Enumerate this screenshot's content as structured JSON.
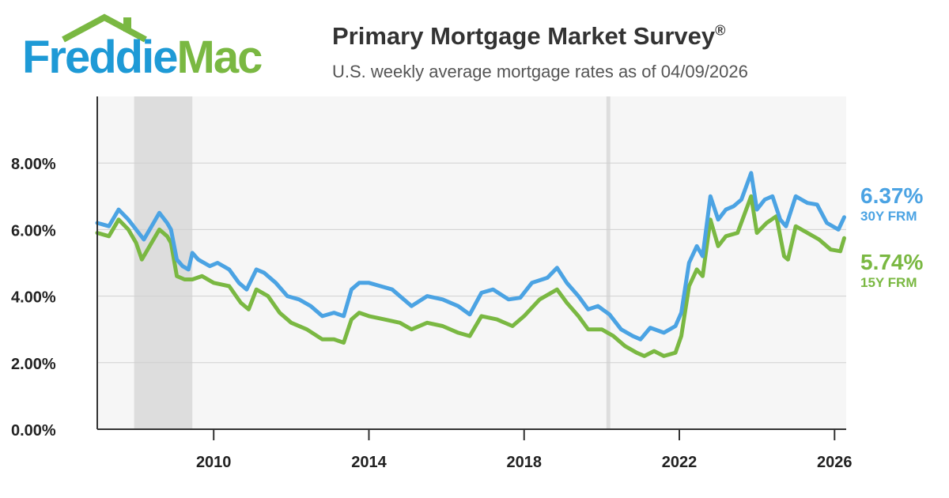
{
  "header": {
    "logo_word1": "Freddie",
    "logo_word2": "Mac",
    "title": "Primary Mortgage Market Survey",
    "title_mark": "®",
    "subtitle": "U.S. weekly average mortgage rates as of 04/09/2026"
  },
  "colors": {
    "brand_blue": "#1e9ad6",
    "brand_green": "#7ab842",
    "series_30y": "#4ba3e3",
    "series_15y": "#7ab842",
    "recession_shade": "#dddddd",
    "plot_background": "#f6f6f6"
  },
  "chart_data": {
    "type": "line",
    "xlim": [
      2007.0,
      2026.3
    ],
    "ylim": [
      0,
      10
    ],
    "y_ticks": [
      {
        "value": 0,
        "label": "0.00%"
      },
      {
        "value": 2,
        "label": "2.00%"
      },
      {
        "value": 4,
        "label": "4.00%"
      },
      {
        "value": 6,
        "label": "6.00%"
      },
      {
        "value": 8,
        "label": "8.00%"
      }
    ],
    "x_ticks": [
      {
        "value": 2010,
        "label": "2010"
      },
      {
        "value": 2014,
        "label": "2014"
      },
      {
        "value": 2018,
        "label": "2018"
      },
      {
        "value": 2022,
        "label": "2022"
      },
      {
        "value": 2026,
        "label": "2026"
      }
    ],
    "grid": "horizontal",
    "shaded_periods": [
      {
        "start": 2007.95,
        "end": 2009.45
      },
      {
        "start": 2020.12,
        "end": 2020.22
      }
    ],
    "series": [
      {
        "name": "30Y FRM",
        "end_value_label": "6.37%",
        "points": [
          [
            2007.0,
            6.2
          ],
          [
            2007.3,
            6.1
          ],
          [
            2007.55,
            6.6
          ],
          [
            2007.8,
            6.3
          ],
          [
            2008.0,
            6.0
          ],
          [
            2008.2,
            5.7
          ],
          [
            2008.4,
            6.1
          ],
          [
            2008.6,
            6.5
          ],
          [
            2008.8,
            6.2
          ],
          [
            2008.9,
            6.0
          ],
          [
            2009.05,
            5.1
          ],
          [
            2009.2,
            4.9
          ],
          [
            2009.35,
            4.8
          ],
          [
            2009.45,
            5.3
          ],
          [
            2009.6,
            5.1
          ],
          [
            2009.9,
            4.9
          ],
          [
            2010.1,
            5.0
          ],
          [
            2010.4,
            4.8
          ],
          [
            2010.65,
            4.4
          ],
          [
            2010.85,
            4.2
          ],
          [
            2011.1,
            4.8
          ],
          [
            2011.3,
            4.7
          ],
          [
            2011.6,
            4.4
          ],
          [
            2011.9,
            4.0
          ],
          [
            2012.2,
            3.9
          ],
          [
            2012.5,
            3.7
          ],
          [
            2012.8,
            3.4
          ],
          [
            2013.1,
            3.5
          ],
          [
            2013.35,
            3.4
          ],
          [
            2013.55,
            4.2
          ],
          [
            2013.75,
            4.4
          ],
          [
            2014.0,
            4.4
          ],
          [
            2014.3,
            4.3
          ],
          [
            2014.6,
            4.2
          ],
          [
            2014.9,
            3.9
          ],
          [
            2015.1,
            3.7
          ],
          [
            2015.5,
            4.0
          ],
          [
            2015.9,
            3.9
          ],
          [
            2016.3,
            3.7
          ],
          [
            2016.6,
            3.45
          ],
          [
            2016.9,
            4.1
          ],
          [
            2017.2,
            4.2
          ],
          [
            2017.6,
            3.9
          ],
          [
            2017.9,
            3.95
          ],
          [
            2018.2,
            4.4
          ],
          [
            2018.6,
            4.55
          ],
          [
            2018.85,
            4.85
          ],
          [
            2019.1,
            4.4
          ],
          [
            2019.4,
            4.0
          ],
          [
            2019.65,
            3.6
          ],
          [
            2019.9,
            3.7
          ],
          [
            2020.2,
            3.45
          ],
          [
            2020.5,
            3.0
          ],
          [
            2020.8,
            2.8
          ],
          [
            2021.0,
            2.7
          ],
          [
            2021.25,
            3.05
          ],
          [
            2021.6,
            2.9
          ],
          [
            2021.9,
            3.1
          ],
          [
            2022.05,
            3.5
          ],
          [
            2022.25,
            5.0
          ],
          [
            2022.45,
            5.5
          ],
          [
            2022.6,
            5.2
          ],
          [
            2022.8,
            7.0
          ],
          [
            2023.0,
            6.3
          ],
          [
            2023.2,
            6.6
          ],
          [
            2023.4,
            6.7
          ],
          [
            2023.6,
            6.9
          ],
          [
            2023.85,
            7.7
          ],
          [
            2024.0,
            6.6
          ],
          [
            2024.2,
            6.9
          ],
          [
            2024.4,
            7.0
          ],
          [
            2024.6,
            6.3
          ],
          [
            2024.75,
            6.1
          ],
          [
            2025.0,
            7.0
          ],
          [
            2025.3,
            6.8
          ],
          [
            2025.55,
            6.75
          ],
          [
            2025.8,
            6.2
          ],
          [
            2026.1,
            6.0
          ],
          [
            2026.25,
            6.37
          ]
        ]
      },
      {
        "name": "15Y FRM",
        "end_value_label": "5.74%",
        "points": [
          [
            2007.0,
            5.9
          ],
          [
            2007.3,
            5.8
          ],
          [
            2007.55,
            6.3
          ],
          [
            2007.8,
            6.0
          ],
          [
            2008.0,
            5.6
          ],
          [
            2008.15,
            5.1
          ],
          [
            2008.35,
            5.5
          ],
          [
            2008.6,
            6.0
          ],
          [
            2008.8,
            5.8
          ],
          [
            2008.9,
            5.6
          ],
          [
            2009.05,
            4.6
          ],
          [
            2009.25,
            4.5
          ],
          [
            2009.45,
            4.5
          ],
          [
            2009.7,
            4.6
          ],
          [
            2010.0,
            4.4
          ],
          [
            2010.4,
            4.3
          ],
          [
            2010.7,
            3.8
          ],
          [
            2010.9,
            3.6
          ],
          [
            2011.1,
            4.2
          ],
          [
            2011.4,
            4.0
          ],
          [
            2011.7,
            3.5
          ],
          [
            2012.0,
            3.2
          ],
          [
            2012.4,
            3.0
          ],
          [
            2012.8,
            2.7
          ],
          [
            2013.1,
            2.7
          ],
          [
            2013.35,
            2.6
          ],
          [
            2013.55,
            3.3
          ],
          [
            2013.75,
            3.5
          ],
          [
            2014.0,
            3.4
          ],
          [
            2014.4,
            3.3
          ],
          [
            2014.8,
            3.2
          ],
          [
            2015.1,
            3.0
          ],
          [
            2015.5,
            3.2
          ],
          [
            2015.9,
            3.1
          ],
          [
            2016.3,
            2.9
          ],
          [
            2016.6,
            2.8
          ],
          [
            2016.9,
            3.4
          ],
          [
            2017.3,
            3.3
          ],
          [
            2017.7,
            3.1
          ],
          [
            2018.0,
            3.4
          ],
          [
            2018.4,
            3.9
          ],
          [
            2018.85,
            4.2
          ],
          [
            2019.1,
            3.8
          ],
          [
            2019.4,
            3.4
          ],
          [
            2019.65,
            3.0
          ],
          [
            2020.0,
            3.0
          ],
          [
            2020.3,
            2.8
          ],
          [
            2020.6,
            2.5
          ],
          [
            2020.9,
            2.3
          ],
          [
            2021.1,
            2.2
          ],
          [
            2021.35,
            2.35
          ],
          [
            2021.6,
            2.2
          ],
          [
            2021.9,
            2.3
          ],
          [
            2022.05,
            2.8
          ],
          [
            2022.25,
            4.3
          ],
          [
            2022.45,
            4.8
          ],
          [
            2022.6,
            4.6
          ],
          [
            2022.8,
            6.3
          ],
          [
            2023.0,
            5.5
          ],
          [
            2023.2,
            5.8
          ],
          [
            2023.5,
            5.9
          ],
          [
            2023.85,
            7.0
          ],
          [
            2024.0,
            5.9
          ],
          [
            2024.25,
            6.2
          ],
          [
            2024.5,
            6.4
          ],
          [
            2024.7,
            5.2
          ],
          [
            2024.8,
            5.1
          ],
          [
            2025.0,
            6.1
          ],
          [
            2025.3,
            5.9
          ],
          [
            2025.6,
            5.7
          ],
          [
            2025.9,
            5.4
          ],
          [
            2026.15,
            5.35
          ],
          [
            2026.25,
            5.74
          ]
        ]
      }
    ]
  }
}
